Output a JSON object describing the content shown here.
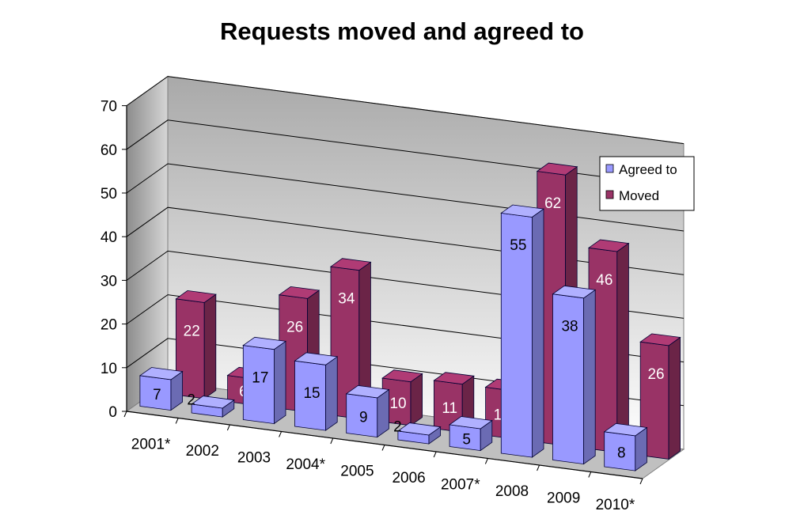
{
  "chart_data": {
    "type": "bar",
    "title": "Requests moved and agreed to",
    "categories": [
      "2001*",
      "2002",
      "2003",
      "2004*",
      "2005",
      "2006",
      "2007*",
      "2008",
      "2009",
      "2010*"
    ],
    "series": [
      {
        "name": "Agreed to",
        "values": [
          7,
          2,
          17,
          15,
          9,
          2,
          5,
          55,
          38,
          8
        ]
      },
      {
        "name": "Moved",
        "values": [
          22,
          6,
          26,
          34,
          10,
          11,
          11,
          62,
          46,
          26
        ]
      }
    ],
    "ylim": [
      0,
      70
    ],
    "yticks": [
      0,
      10,
      20,
      30,
      40,
      50,
      60,
      70
    ],
    "grid": true,
    "legend_position": "right",
    "colors": {
      "Agreed to": "#9999ff",
      "Moved": "#993366"
    }
  }
}
